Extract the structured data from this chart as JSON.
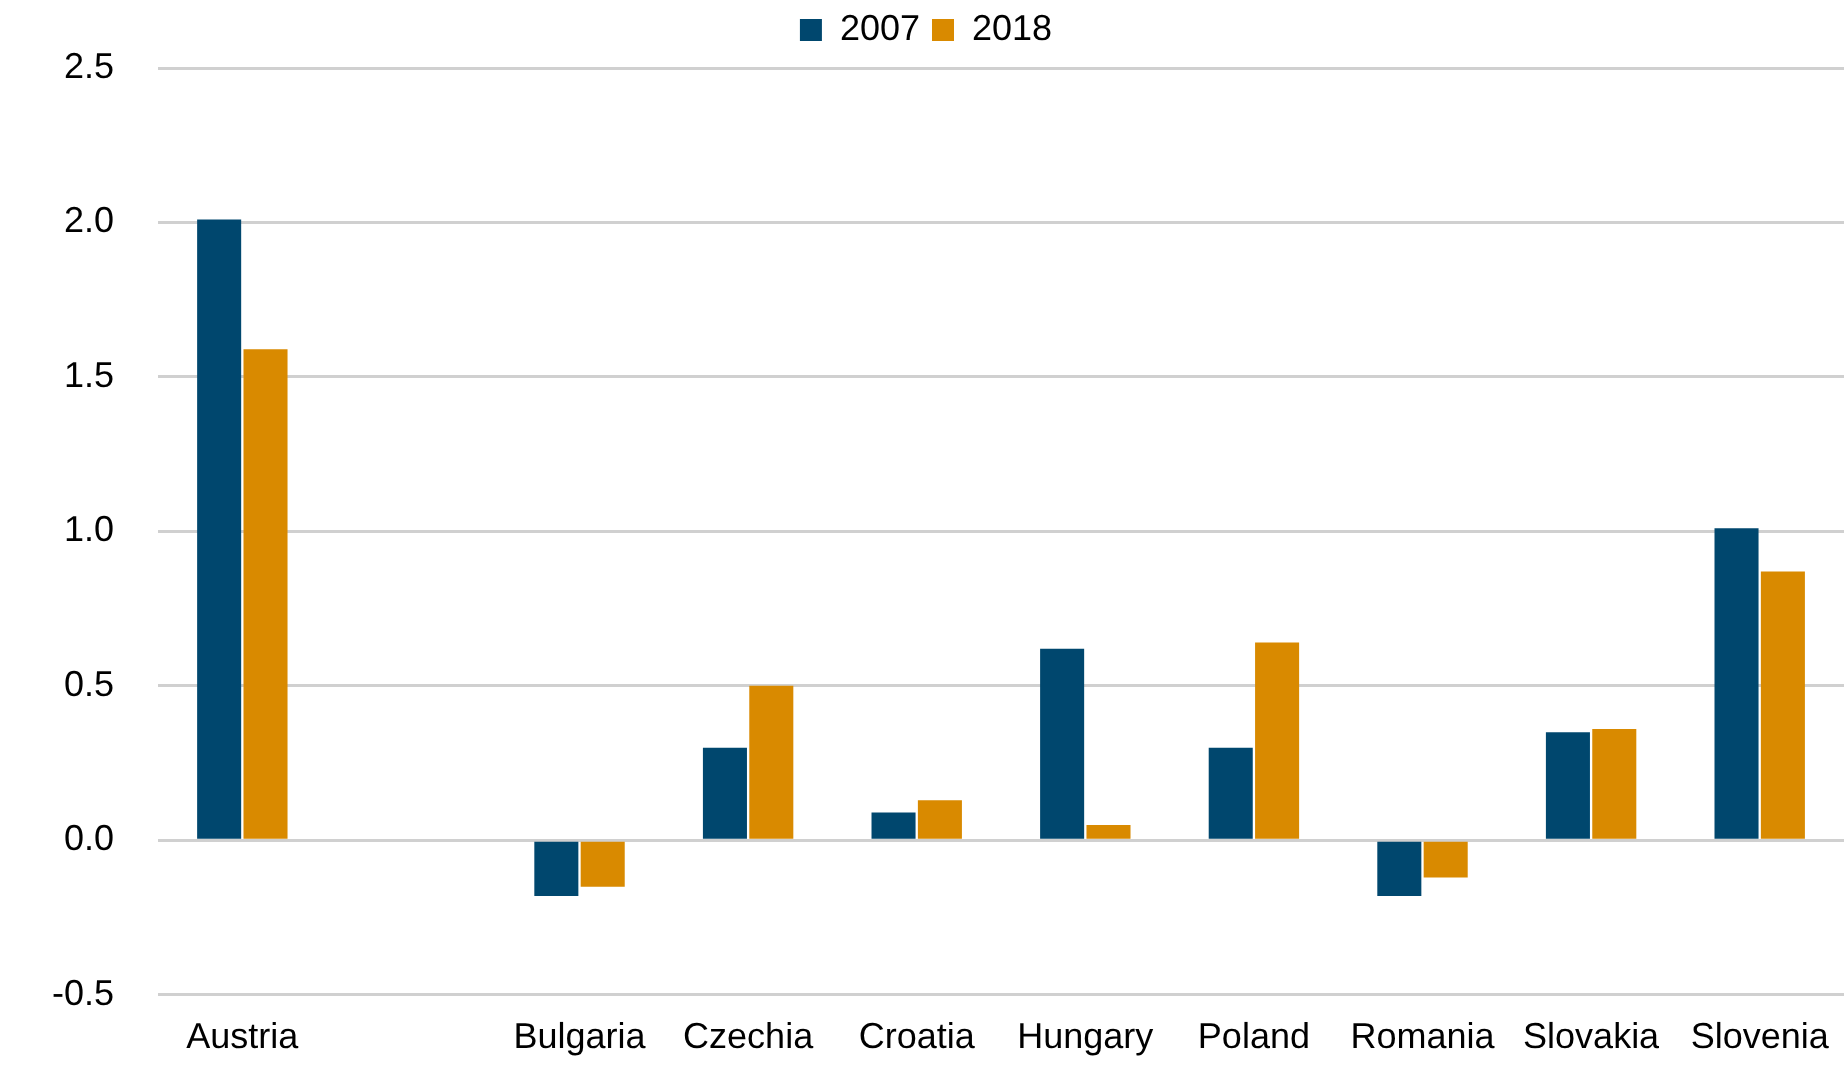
{
  "chart_data": {
    "type": "bar",
    "categories": [
      "Austria",
      null,
      "Bulgaria",
      "Czechia",
      "Croatia",
      "Hungary",
      "Poland",
      "Romania",
      "Slovakia",
      "Slovenia"
    ],
    "series": [
      {
        "name": "2007",
        "color": "#00476e",
        "values": [
          2.01,
          null,
          -0.18,
          0.3,
          0.09,
          0.62,
          0.3,
          -0.18,
          0.35,
          1.01
        ]
      },
      {
        "name": "2018",
        "color": "#d98a00",
        "values": [
          1.59,
          null,
          -0.15,
          0.5,
          0.13,
          0.05,
          0.64,
          -0.12,
          0.36,
          0.87
        ]
      }
    ],
    "ylim": [
      -0.5,
      2.5
    ],
    "yticks": [
      {
        "value": -0.5,
        "label": "-0.5"
      },
      {
        "value": 0,
        "label": "0.0"
      },
      {
        "value": 0.5,
        "label": "0.5"
      },
      {
        "value": 1,
        "label": "1.0"
      },
      {
        "value": 1.5,
        "label": "1.5"
      },
      {
        "value": 2,
        "label": "2.0"
      },
      {
        "value": 2.5,
        "label": "2.5"
      }
    ],
    "grid": "y",
    "legend": "top"
  }
}
